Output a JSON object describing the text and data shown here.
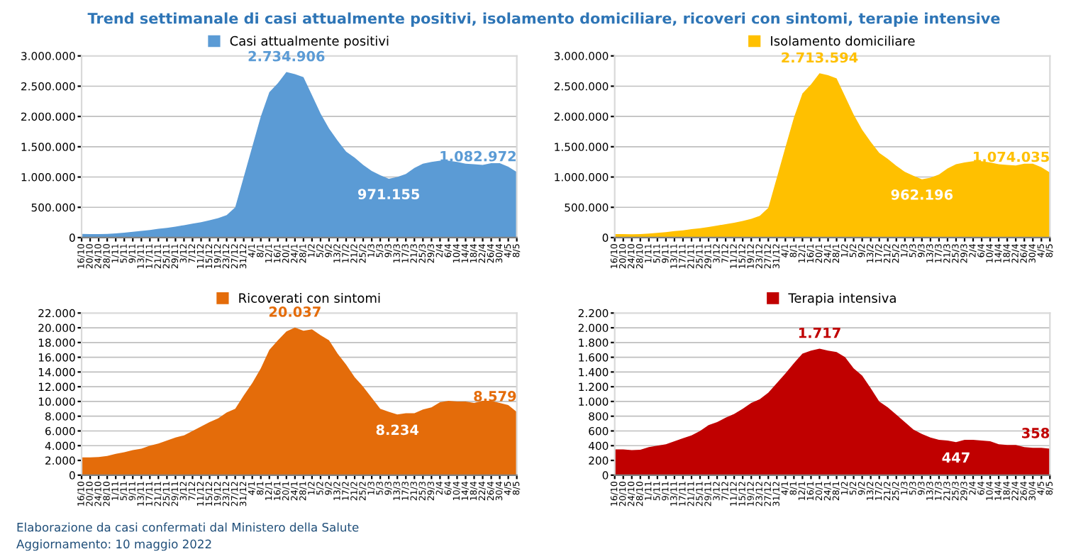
{
  "chart_data": [
    {
      "type": "area",
      "title": "Trend settimanale di casi attualmente positivi, isolamento domiciliare, ricoveri con sintomi, terapie intensive",
      "categories": [
        "16/10",
        "20/10",
        "24/10",
        "28/10",
        "1/11",
        "5/11",
        "9/11",
        "13/11",
        "17/11",
        "21/11",
        "25/11",
        "29/11",
        "3/12",
        "7/12",
        "11/12",
        "15/12",
        "19/12",
        "23/12",
        "27/12",
        "31/12",
        "4/1",
        "8/1",
        "12/1",
        "16/1",
        "20/1",
        "24/1",
        "28/1",
        "1/2",
        "5/2",
        "9/2",
        "13/2",
        "17/2",
        "21/2",
        "25/2",
        "1/3",
        "5/3",
        "9/3",
        "13/3",
        "17/3",
        "21/3",
        "25/3",
        "29/3",
        "2/4",
        "6/4",
        "10/4",
        "14/4",
        "18/4",
        "22/4",
        "26/4",
        "30/4",
        "4/5",
        "8/5"
      ],
      "series": [
        {
          "name": "Casi attualmente positivi",
          "color": "#5b9bd5",
          "values": [
            60000,
            58000,
            57000,
            60000,
            68000,
            80000,
            95000,
            110000,
            125000,
            145000,
            160000,
            180000,
            205000,
            230000,
            255000,
            285000,
            320000,
            370000,
            500000,
            1000000,
            1500000,
            2000000,
            2400000,
            2550000,
            2734906,
            2700000,
            2650000,
            2350000,
            2050000,
            1800000,
            1600000,
            1420000,
            1320000,
            1200000,
            1100000,
            1030000,
            971155,
            1000000,
            1050000,
            1150000,
            1220000,
            1250000,
            1270000,
            1270000,
            1250000,
            1220000,
            1210000,
            1200000,
            1230000,
            1230000,
            1170000,
            1082972
          ],
          "value_labels": [
            null,
            null,
            null,
            null,
            null,
            null,
            null,
            null,
            null,
            null,
            null,
            null,
            null,
            null,
            null,
            null,
            null,
            null,
            null,
            null,
            null,
            null,
            null,
            null,
            "2.734.906",
            null,
            null,
            null,
            null,
            null,
            null,
            null,
            null,
            null,
            null,
            null,
            "971.155",
            null,
            null,
            null,
            null,
            null,
            null,
            null,
            null,
            null,
            null,
            null,
            null,
            null,
            null,
            "1.082.972"
          ]
        }
      ],
      "ylim": [
        0,
        3000000
      ],
      "yticks": [
        0,
        {
          "value": 500000,
          "label": "500.000"
        },
        {
          "value": 1000000,
          "label": "1.000.000"
        },
        {
          "value": 1500000,
          "label": "1.500.000"
        },
        {
          "value": 2000000,
          "label": "2.000.000"
        },
        {
          "value": 2500000,
          "label": "2.500.000"
        },
        {
          "value": 3000000,
          "label": "3.000.000"
        }
      ],
      "grid": "y",
      "legend": "top"
    },
    {
      "type": "area",
      "categories": [
        "16/10",
        "20/10",
        "24/10",
        "28/10",
        "1/11",
        "5/11",
        "9/11",
        "13/11",
        "17/11",
        "21/11",
        "25/11",
        "29/11",
        "3/12",
        "7/12",
        "11/12",
        "15/12",
        "19/12",
        "23/12",
        "27/12",
        "31/12",
        "4/1",
        "8/1",
        "12/1",
        "16/1",
        "20/1",
        "24/1",
        "28/1",
        "1/2",
        "5/2",
        "9/2",
        "13/2",
        "17/2",
        "21/2",
        "25/2",
        "1/3",
        "5/3",
        "9/3",
        "13/3",
        "17/3",
        "21/3",
        "25/3",
        "29/3",
        "2/4",
        "6/4",
        "10/4",
        "14/4",
        "18/4",
        "22/4",
        "26/4",
        "30/4",
        "4/5",
        "8/5"
      ],
      "series": [
        {
          "name": "Isolamento domiciliare",
          "color": "#ffc000",
          "values": [
            58000,
            56000,
            55000,
            58000,
            65000,
            77000,
            91000,
            106000,
            120000,
            140000,
            155000,
            175000,
            198000,
            222000,
            246000,
            275000,
            310000,
            360000,
            490000,
            990000,
            1490000,
            1980000,
            2380000,
            2530000,
            2713594,
            2680000,
            2630000,
            2330000,
            2030000,
            1780000,
            1580000,
            1400000,
            1300000,
            1185000,
            1085000,
            1020000,
            962196,
            990000,
            1040000,
            1140000,
            1210000,
            1240000,
            1260000,
            1260000,
            1240000,
            1210000,
            1200000,
            1190000,
            1220000,
            1220000,
            1160000,
            1074035
          ],
          "value_labels": [
            null,
            null,
            null,
            null,
            null,
            null,
            null,
            null,
            null,
            null,
            null,
            null,
            null,
            null,
            null,
            null,
            null,
            null,
            null,
            null,
            null,
            null,
            null,
            null,
            "2.713.594",
            null,
            null,
            null,
            null,
            null,
            null,
            null,
            null,
            null,
            null,
            null,
            "962.196",
            null,
            null,
            null,
            null,
            null,
            null,
            null,
            null,
            null,
            null,
            null,
            null,
            null,
            null,
            "1.074.035"
          ]
        }
      ],
      "ylim": [
        0,
        3000000
      ],
      "yticks": [
        0,
        {
          "value": 500000,
          "label": "500.000"
        },
        {
          "value": 1000000,
          "label": "1.000.000"
        },
        {
          "value": 1500000,
          "label": "1.500.000"
        },
        {
          "value": 2000000,
          "label": "2.000.000"
        },
        {
          "value": 2500000,
          "label": "2.500.000"
        },
        {
          "value": 3000000,
          "label": "3.000.000"
        }
      ],
      "grid": "y",
      "legend": "top"
    },
    {
      "type": "area",
      "categories": [
        "16/10",
        "20/10",
        "24/10",
        "28/10",
        "1/11",
        "5/11",
        "9/11",
        "13/11",
        "17/11",
        "21/11",
        "25/11",
        "29/11",
        "3/12",
        "7/12",
        "11/12",
        "15/12",
        "19/12",
        "23/12",
        "27/12",
        "31/12",
        "4/1",
        "8/1",
        "12/1",
        "16/1",
        "20/1",
        "24/1",
        "28/1",
        "1/2",
        "5/2",
        "9/2",
        "13/2",
        "17/2",
        "21/2",
        "25/2",
        "1/3",
        "5/3",
        "9/3",
        "13/3",
        "17/3",
        "21/3",
        "25/3",
        "29/3",
        "2/4",
        "6/4",
        "10/4",
        "14/4",
        "18/4",
        "22/4",
        "26/4",
        "30/4",
        "4/5",
        "8/5"
      ],
      "series": [
        {
          "name": "Ricoverati con sintomi",
          "color": "#e46c0a",
          "values": [
            2400,
            2400,
            2450,
            2600,
            2900,
            3100,
            3400,
            3600,
            4000,
            4300,
            4700,
            5100,
            5400,
            6000,
            6600,
            7200,
            7700,
            8500,
            9000,
            10800,
            12500,
            14500,
            17000,
            18300,
            19500,
            20037,
            19600,
            19800,
            19000,
            18300,
            16500,
            15000,
            13300,
            12000,
            10500,
            9000,
            8600,
            8234,
            8400,
            8400,
            8900,
            9200,
            9900,
            10100,
            10000,
            10000,
            9800,
            10100,
            10100,
            9800,
            9500,
            8579
          ],
          "value_labels": [
            null,
            null,
            null,
            null,
            null,
            null,
            null,
            null,
            null,
            null,
            null,
            null,
            null,
            null,
            null,
            null,
            null,
            null,
            null,
            null,
            null,
            null,
            null,
            null,
            null,
            "20.037",
            null,
            null,
            null,
            null,
            null,
            null,
            null,
            null,
            null,
            null,
            null,
            "8.234",
            null,
            null,
            null,
            null,
            null,
            null,
            null,
            null,
            null,
            null,
            null,
            null,
            null,
            "8.579"
          ]
        }
      ],
      "ylim": [
        0,
        22000
      ],
      "yticks": [
        0,
        {
          "value": 2000,
          "label": "2.000"
        },
        {
          "value": 4000,
          "label": "4.000"
        },
        {
          "value": 6000,
          "label": "6.000"
        },
        {
          "value": 8000,
          "label": "8.000"
        },
        {
          "value": 10000,
          "label": "10.000"
        },
        {
          "value": 12000,
          "label": "12.000"
        },
        {
          "value": 14000,
          "label": "14.000"
        },
        {
          "value": 16000,
          "label": "16.000"
        },
        {
          "value": 18000,
          "label": "18.000"
        },
        {
          "value": 20000,
          "label": "20.000"
        },
        {
          "value": 22000,
          "label": "22.000"
        }
      ],
      "grid": "y",
      "legend": "top",
      "annotations": [
        "Elaborazione da casi confermati dal Ministero della Salute",
        "Aggiornamento: 10 maggio 2022"
      ]
    },
    {
      "type": "area",
      "categories": [
        "16/10",
        "20/10",
        "24/10",
        "28/10",
        "1/11",
        "5/11",
        "9/11",
        "13/11",
        "17/11",
        "21/11",
        "25/11",
        "29/11",
        "3/12",
        "7/12",
        "11/12",
        "15/12",
        "19/12",
        "23/12",
        "27/12",
        "31/12",
        "4/1",
        "8/1",
        "12/1",
        "16/1",
        "20/1",
        "24/1",
        "28/1",
        "1/2",
        "5/2",
        "9/2",
        "13/2",
        "17/2",
        "21/2",
        "25/2",
        "1/3",
        "5/3",
        "9/3",
        "13/3",
        "17/3",
        "21/3",
        "25/3",
        "29/3",
        "2/4",
        "6/4",
        "10/4",
        "14/4",
        "18/4",
        "22/4",
        "26/4",
        "30/4",
        "4/5",
        "8/5"
      ],
      "series": [
        {
          "name": "Terapia intensiva",
          "color": "#c00000",
          "values": [
            350,
            350,
            340,
            345,
            380,
            400,
            420,
            460,
            500,
            540,
            600,
            680,
            720,
            780,
            830,
            900,
            980,
            1030,
            1120,
            1250,
            1380,
            1520,
            1650,
            1690,
            1717,
            1690,
            1670,
            1600,
            1450,
            1350,
            1180,
            1000,
            920,
            820,
            720,
            620,
            560,
            510,
            480,
            470,
            447,
            480,
            480,
            470,
            460,
            420,
            410,
            410,
            380,
            370,
            370,
            358
          ],
          "value_labels": [
            null,
            null,
            null,
            null,
            null,
            null,
            null,
            null,
            null,
            null,
            null,
            null,
            null,
            null,
            null,
            null,
            null,
            null,
            null,
            null,
            null,
            null,
            null,
            null,
            "1.717",
            null,
            null,
            null,
            null,
            null,
            null,
            null,
            null,
            null,
            null,
            null,
            null,
            null,
            null,
            null,
            "447",
            null,
            null,
            null,
            null,
            null,
            null,
            null,
            null,
            null,
            null,
            "358"
          ]
        }
      ],
      "ylim": [
        0,
        2200
      ],
      "yticks": [
        0,
        {
          "value": 200,
          "label": "200"
        },
        {
          "value": 400,
          "label": "400"
        },
        {
          "value": 600,
          "label": "600"
        },
        {
          "value": 800,
          "label": "800"
        },
        {
          "value": 1000,
          "label": "1.000"
        },
        {
          "value": 1200,
          "label": "1.200"
        },
        {
          "value": 1400,
          "label": "1.400"
        },
        {
          "value": 1600,
          "label": "1.600"
        },
        {
          "value": 1800,
          "label": "1.800"
        },
        {
          "value": 2000,
          "label": "2.000"
        },
        {
          "value": 2200,
          "label": "2.200"
        }
      ],
      "grid": "y",
      "legend": "top"
    }
  ]
}
